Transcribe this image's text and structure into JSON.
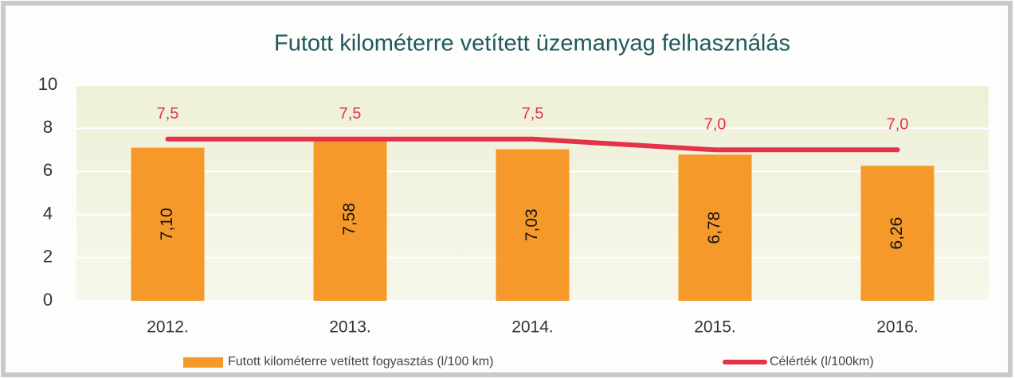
{
  "chart_data": {
    "type": "bar",
    "title": "Futott kilométerre vetített üzemanyag felhasználás",
    "categories": [
      "2012.",
      "2013.",
      "2014.",
      "2015.",
      "2016."
    ],
    "series": [
      {
        "name": "Futott kilométerre vetített fogyasztás (l/100 km)",
        "type": "bar",
        "color": "#f59a2a",
        "values": [
          7.1,
          7.58,
          7.03,
          6.78,
          6.26
        ],
        "value_labels": [
          "7,10",
          "7,58",
          "7,03",
          "6,78",
          "6,26"
        ]
      },
      {
        "name": "Célérték (l/100km)",
        "type": "line",
        "color": "#e5324b",
        "values": [
          7.5,
          7.5,
          7.5,
          7.0,
          7.0
        ],
        "value_labels": [
          "7,5",
          "7,5",
          "7,5",
          "7,0",
          "7,0"
        ]
      }
    ],
    "ylim": [
      0,
      10
    ],
    "yticks": [
      0,
      2,
      4,
      6,
      8,
      10
    ],
    "grid": true,
    "legend": "bottom"
  }
}
